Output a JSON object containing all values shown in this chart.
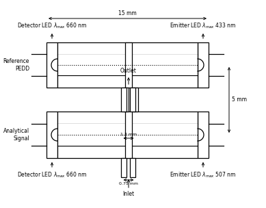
{
  "bg_color": "#ffffff",
  "line_color": "#000000",
  "fig_width": 3.89,
  "fig_height": 3.04,
  "dpi": 100,
  "top_det_label": "Detector LED $\\lambda_{max}$ 660 nm",
  "bot_det_label": "Detector LED $\\lambda_{max}$ 660 nm",
  "top_emit_label": "Emitter LED $\\lambda_{max}$ 433 nm",
  "bot_emit_label": "Emitter LED $\\lambda_{max}$ 507 nm",
  "ref_pedd_label": "Reference\nPEDD",
  "anal_signal_label": "Analytical\nSignal",
  "outlet_label": "Outlet",
  "inlet_label": "Inlet",
  "dim_15mm": "15 mm",
  "dim_5mm": "5 mm",
  "dim_13mm": "1.3 mm",
  "dim_075mm": "0.75 mm"
}
